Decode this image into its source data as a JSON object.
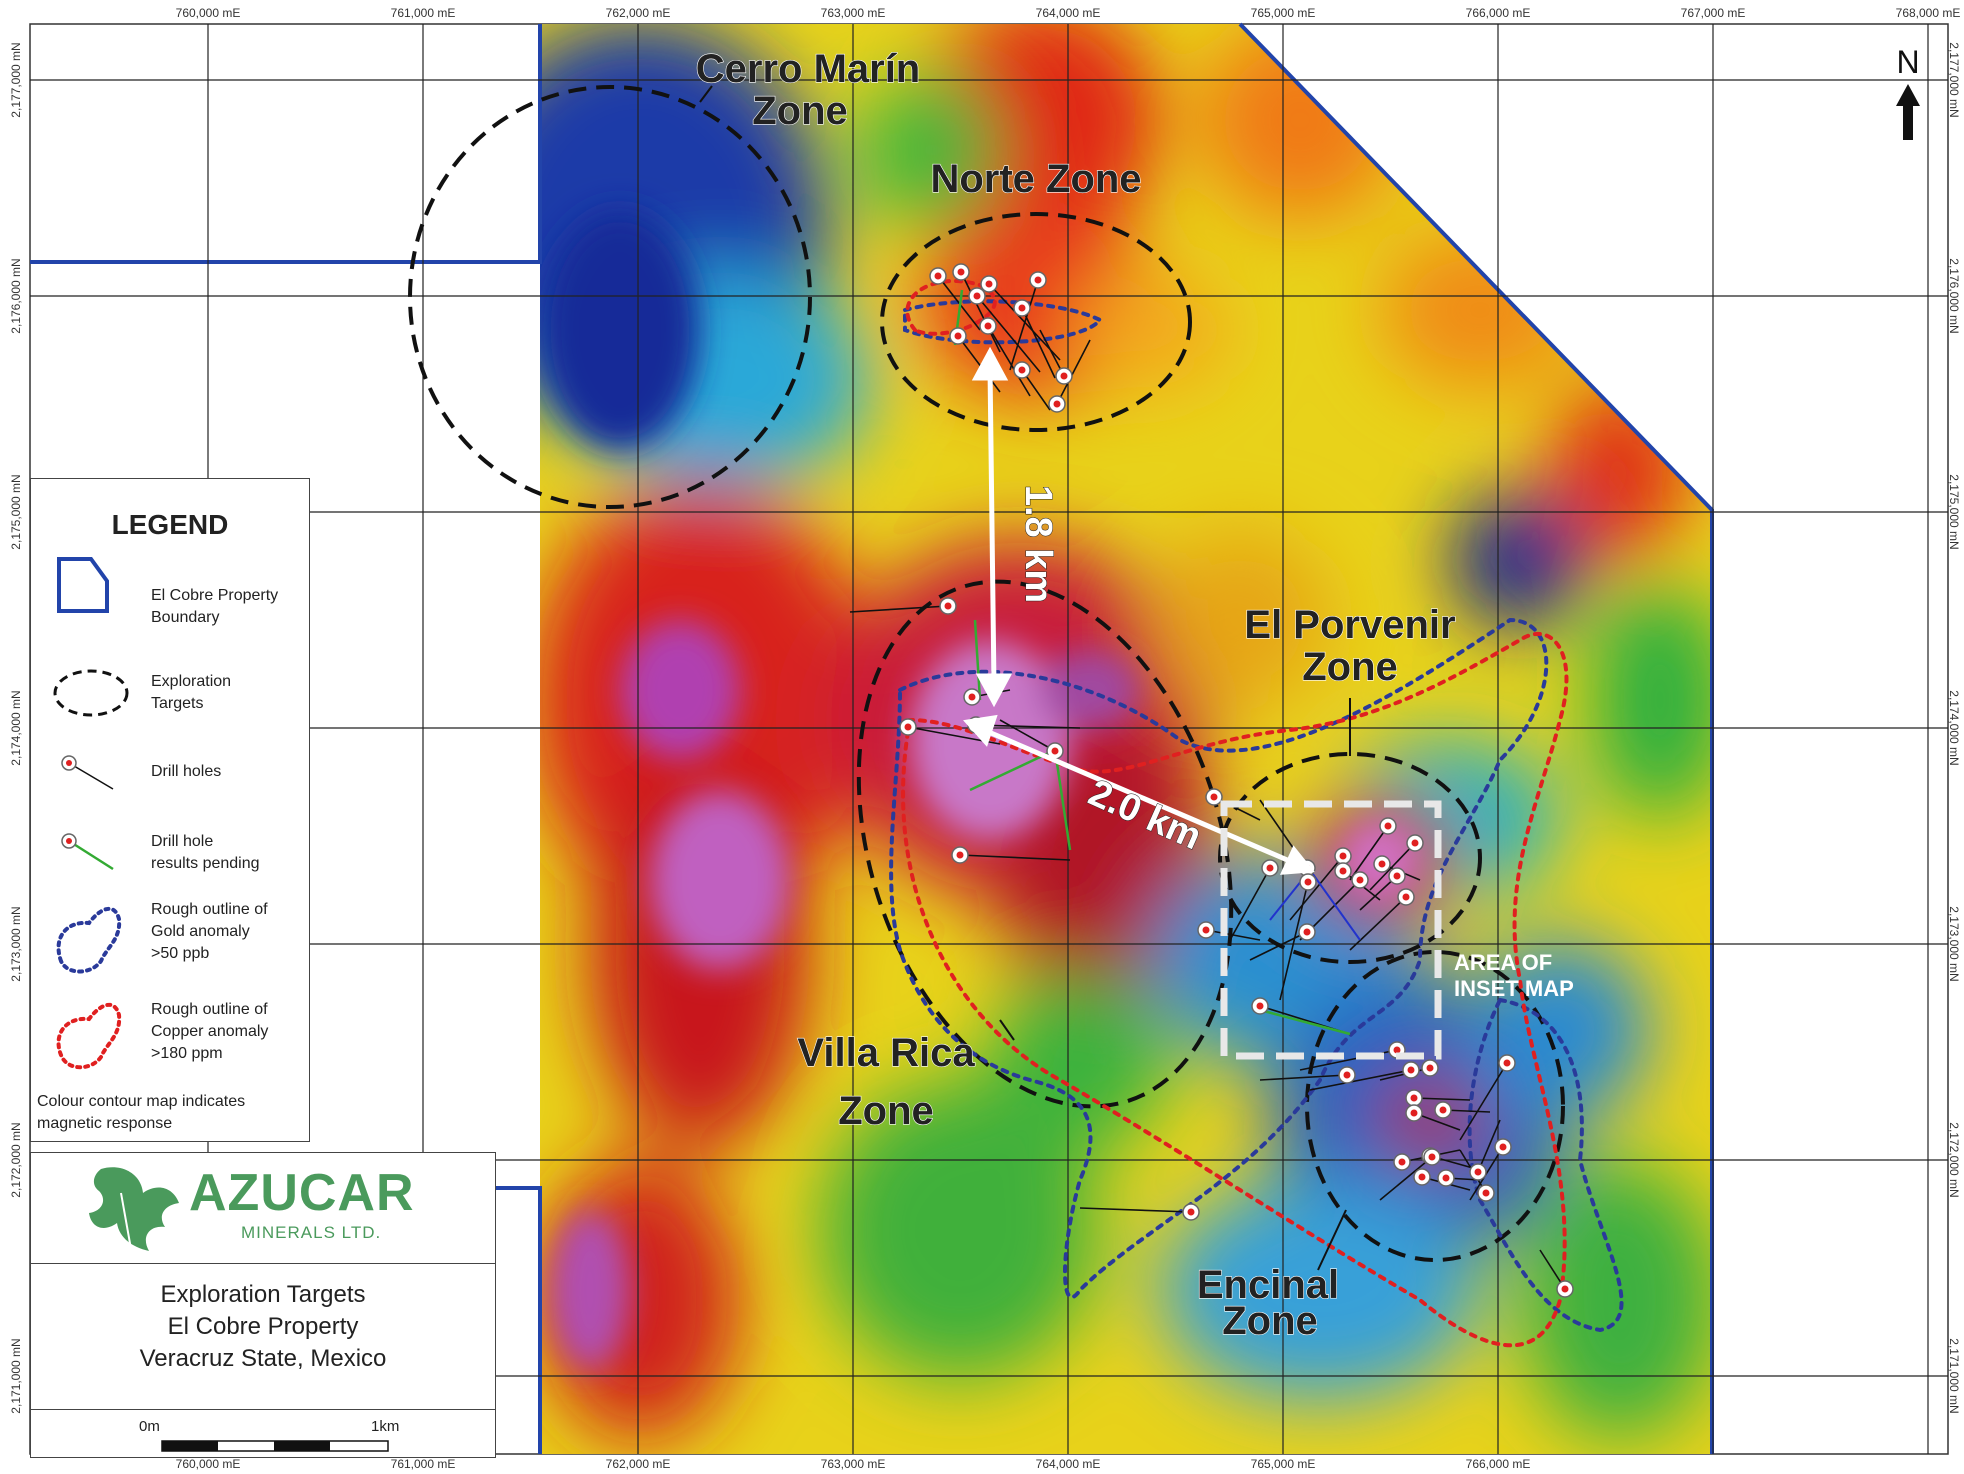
{
  "map": {
    "easting_labels": [
      "760,000 mE",
      "761,000 mE",
      "762,000 mE",
      "763,000 mE",
      "764,000 mE",
      "765,000 mE",
      "766,000 mE",
      "767,000 mE",
      "768,000 mE"
    ],
    "northing_labels": [
      "2,177,000 mN",
      "2,176,000 mN",
      "2,175,000 mN",
      "2,174,000 mN",
      "2,173,000 mN",
      "2,172,000 mN",
      "2,171,000 mN"
    ],
    "zones": [
      {
        "line1": "Cerro Marín",
        "line2": "Zone"
      },
      {
        "line1": "Norte Zone",
        "line2": ""
      },
      {
        "line1": "El Porvenir",
        "line2": "Zone"
      },
      {
        "line1": "Villa Rica",
        "line2": "Zone"
      },
      {
        "line1": "Encinal",
        "line2": "Zone"
      }
    ],
    "distance_1": "1.8 km",
    "distance_2": "2.0 km",
    "inset_label_1": "AREA OF",
    "inset_label_2": "INSET MAP",
    "north": "N"
  },
  "legend": {
    "title": "LEGEND",
    "items": [
      {
        "line1": "El Cobre Property",
        "line2": "Boundary",
        "line3": ""
      },
      {
        "line1": "Exploration",
        "line2": "Targets",
        "line3": ""
      },
      {
        "line1": "Drill holes",
        "line2": "",
        "line3": ""
      },
      {
        "line1": "Drill hole",
        "line2": "results pending",
        "line3": ""
      },
      {
        "line1": "Rough outline of",
        "line2": "Gold anomaly",
        "line3": ">50 ppb"
      },
      {
        "line1": "Rough outline of",
        "line2": "Copper anomaly",
        "line3": ">180 ppm"
      }
    ],
    "note_1": "Colour contour map indicates",
    "note_2": "magnetic response"
  },
  "company": {
    "name": "AZUCAR",
    "sub": "MINERALS LTD."
  },
  "title": {
    "line1": "Exploration Targets",
    "line2": "El Cobre Property",
    "line3": "Veracruz State, Mexico"
  },
  "scale": {
    "start": "0m",
    "end": "1km"
  },
  "colors": {
    "boundary": "#2244aa",
    "gold_anomaly": "#2a3a9a",
    "copper_anomaly": "#e02020",
    "pending_hole": "#33aa33",
    "logo_green": "#4a9a5c"
  }
}
